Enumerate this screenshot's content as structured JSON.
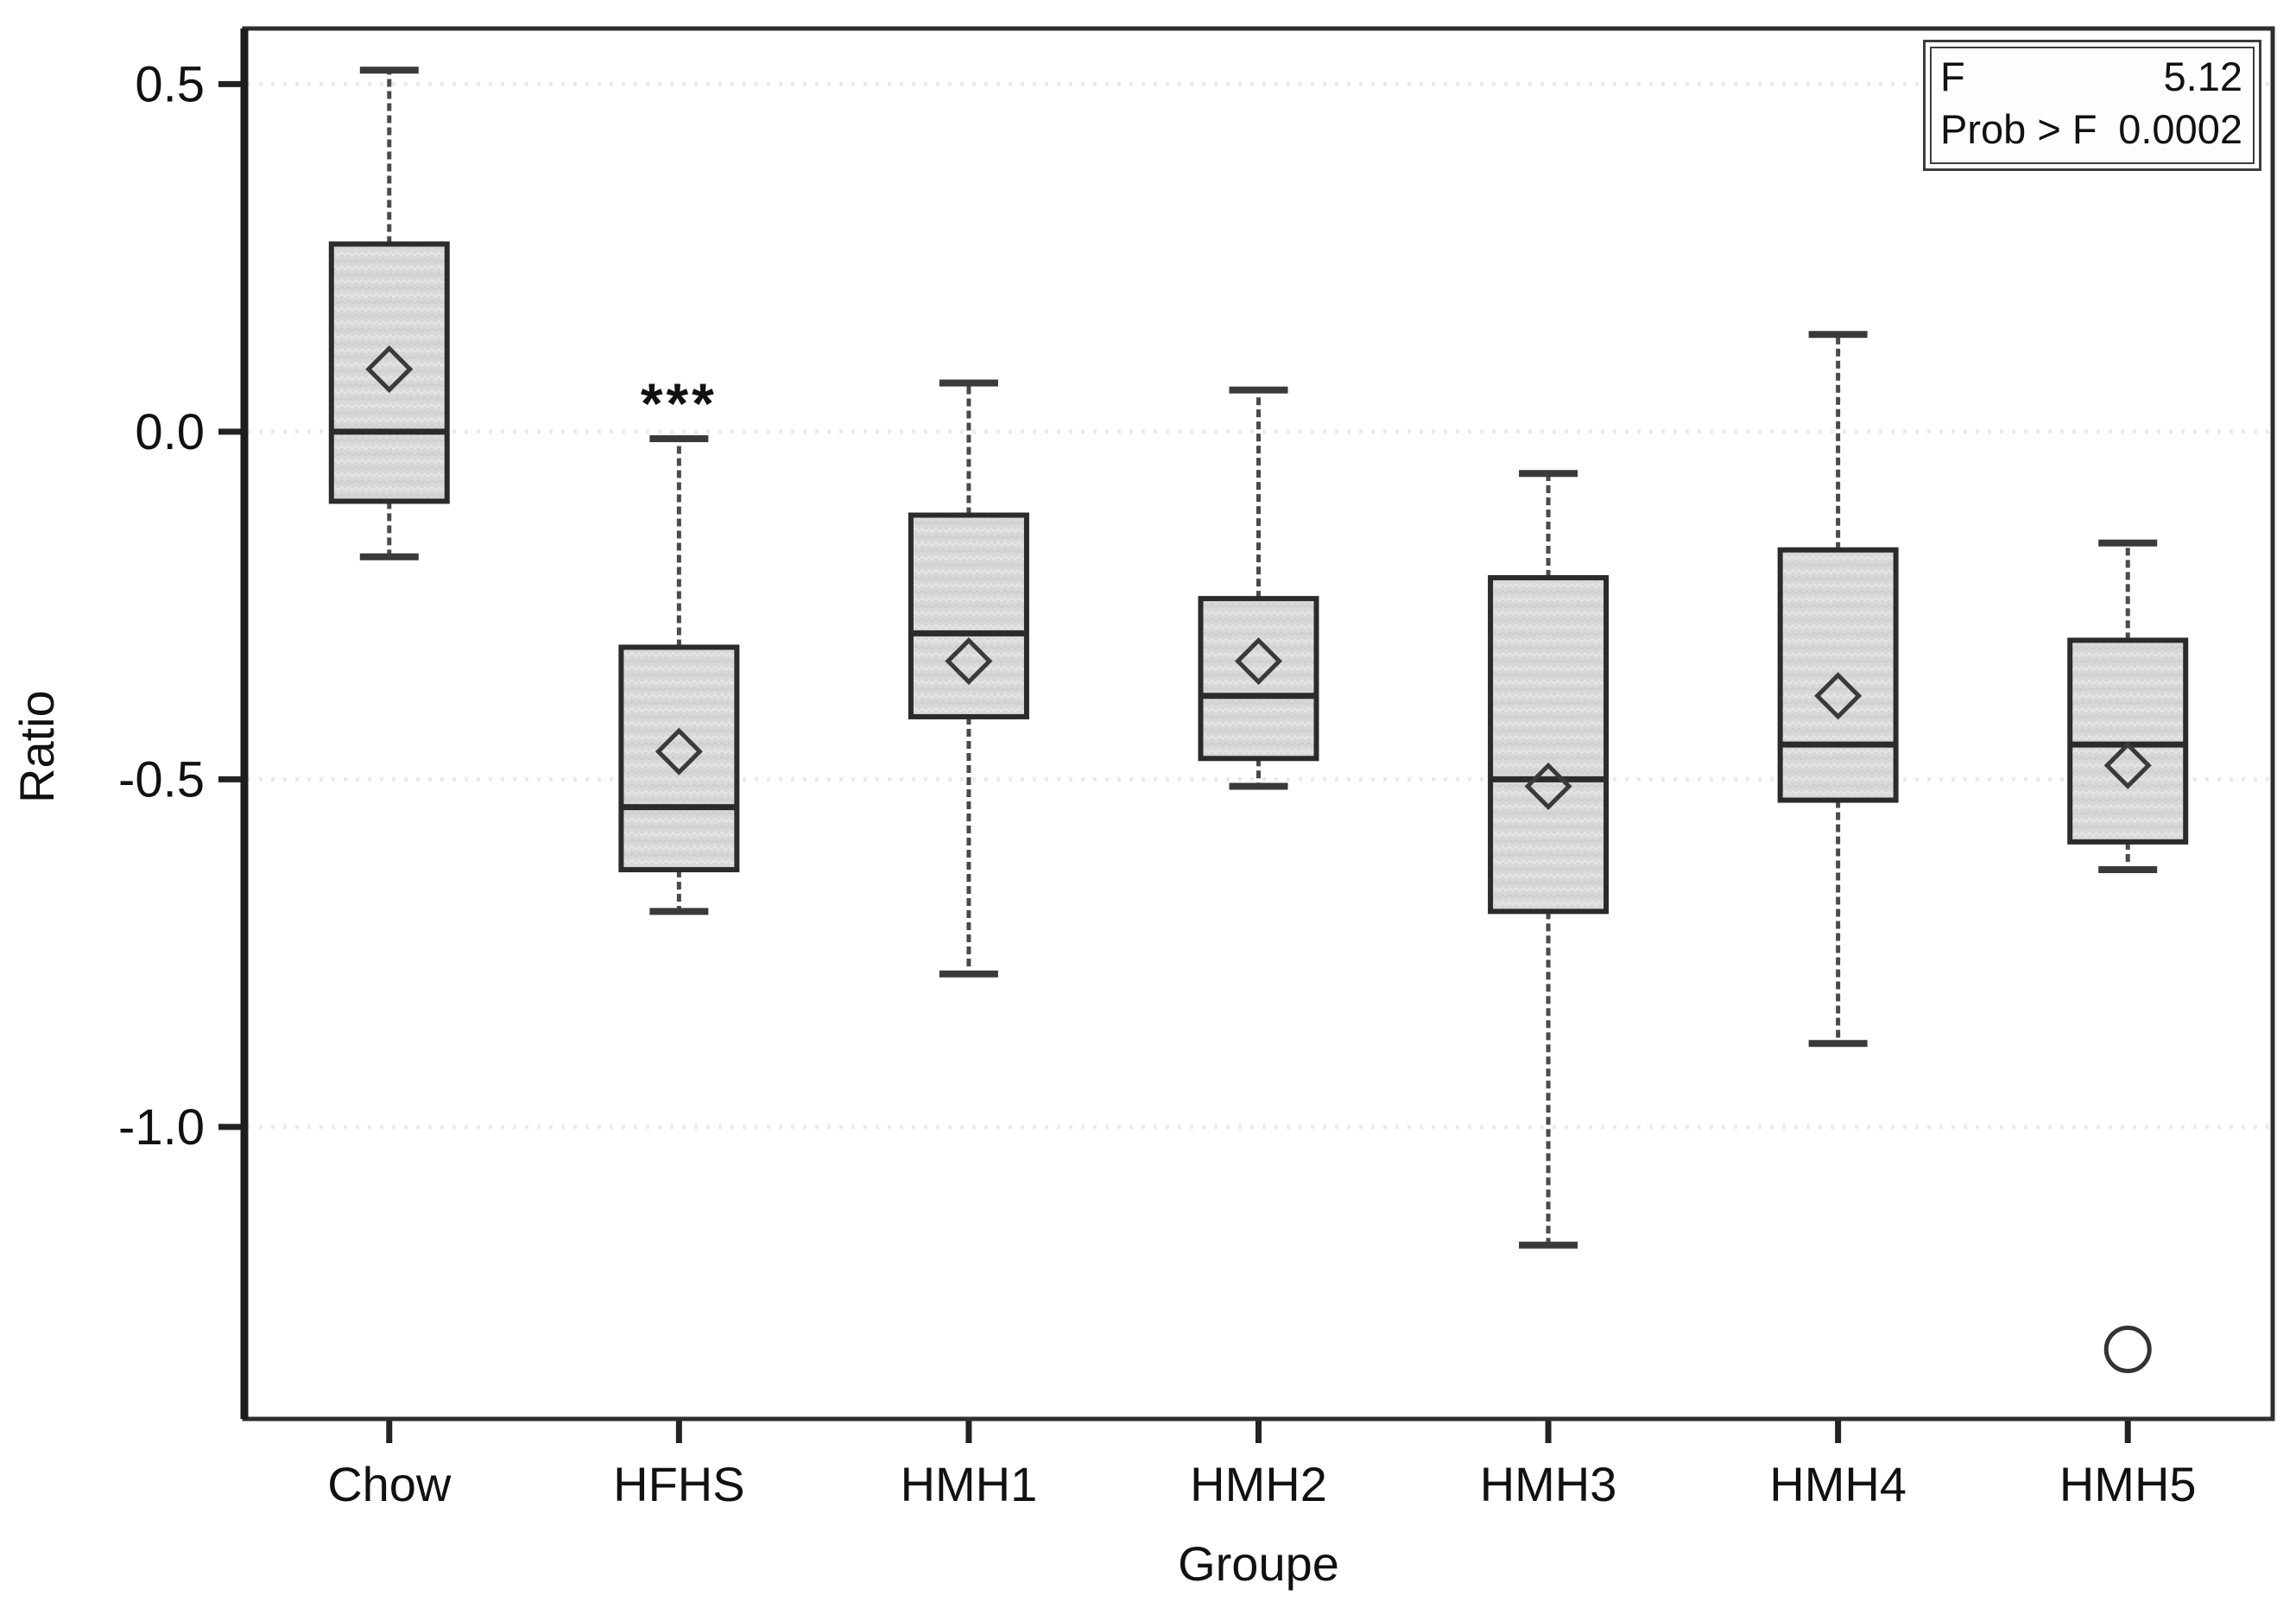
{
  "chart_data": {
    "type": "boxplot",
    "title": "",
    "xlabel": "Groupe",
    "ylabel": "Ratio",
    "categories": [
      "Chow",
      "HFHS",
      "HMH1",
      "HMH2",
      "HMH3",
      "HMH4",
      "HMH5"
    ],
    "y_ticks": [
      0.5,
      0.0,
      -0.5,
      -1.0
    ],
    "y_tick_labels": [
      "0.5",
      "0.0",
      "-0.5",
      "-1.0"
    ],
    "ylim": [
      -1.42,
      0.58
    ],
    "grid": "horizontal dotted lines at y ticks",
    "legend_position": "none",
    "mean_marker": "diamond",
    "series": [
      {
        "name": "Chow",
        "whisker_low": -0.18,
        "q1": -0.1,
        "median": 0.0,
        "q3": 0.27,
        "whisker_high": 0.52,
        "mean": 0.09,
        "outliers": [],
        "annotation": ""
      },
      {
        "name": "HFHS",
        "whisker_low": -0.69,
        "q1": -0.63,
        "median": -0.54,
        "q3": -0.31,
        "whisker_high": -0.01,
        "mean": -0.46,
        "outliers": [],
        "annotation": "***"
      },
      {
        "name": "HMH1",
        "whisker_low": -0.78,
        "q1": -0.41,
        "median": -0.29,
        "q3": -0.12,
        "whisker_high": 0.07,
        "mean": -0.33,
        "outliers": [],
        "annotation": ""
      },
      {
        "name": "HMH2",
        "whisker_low": -0.51,
        "q1": -0.47,
        "median": -0.38,
        "q3": -0.24,
        "whisker_high": 0.06,
        "mean": -0.33,
        "outliers": [],
        "annotation": ""
      },
      {
        "name": "HMH3",
        "whisker_low": -1.17,
        "q1": -0.69,
        "median": -0.5,
        "q3": -0.21,
        "whisker_high": -0.06,
        "mean": -0.51,
        "outliers": [],
        "annotation": ""
      },
      {
        "name": "HMH4",
        "whisker_low": -0.88,
        "q1": -0.53,
        "median": -0.45,
        "q3": -0.17,
        "whisker_high": 0.14,
        "mean": -0.38,
        "outliers": [],
        "annotation": ""
      },
      {
        "name": "HMH5",
        "whisker_low": -0.63,
        "q1": -0.59,
        "median": -0.45,
        "q3": -0.3,
        "whisker_high": -0.16,
        "mean": -0.48,
        "outliers": [
          -1.32
        ],
        "annotation": ""
      }
    ],
    "stats_box": {
      "position": "top-right",
      "rows": [
        {
          "label": "F",
          "value": "5.12"
        },
        {
          "label": "Prob > F",
          "value": "0.0002"
        }
      ]
    },
    "colors": {
      "background": "#ffffff",
      "box_fill": "#d8d8d8",
      "box_border": "#2b2b2b",
      "whisker": "#4a4a4a",
      "grid": "#ebebeb",
      "text": "#111111"
    }
  }
}
